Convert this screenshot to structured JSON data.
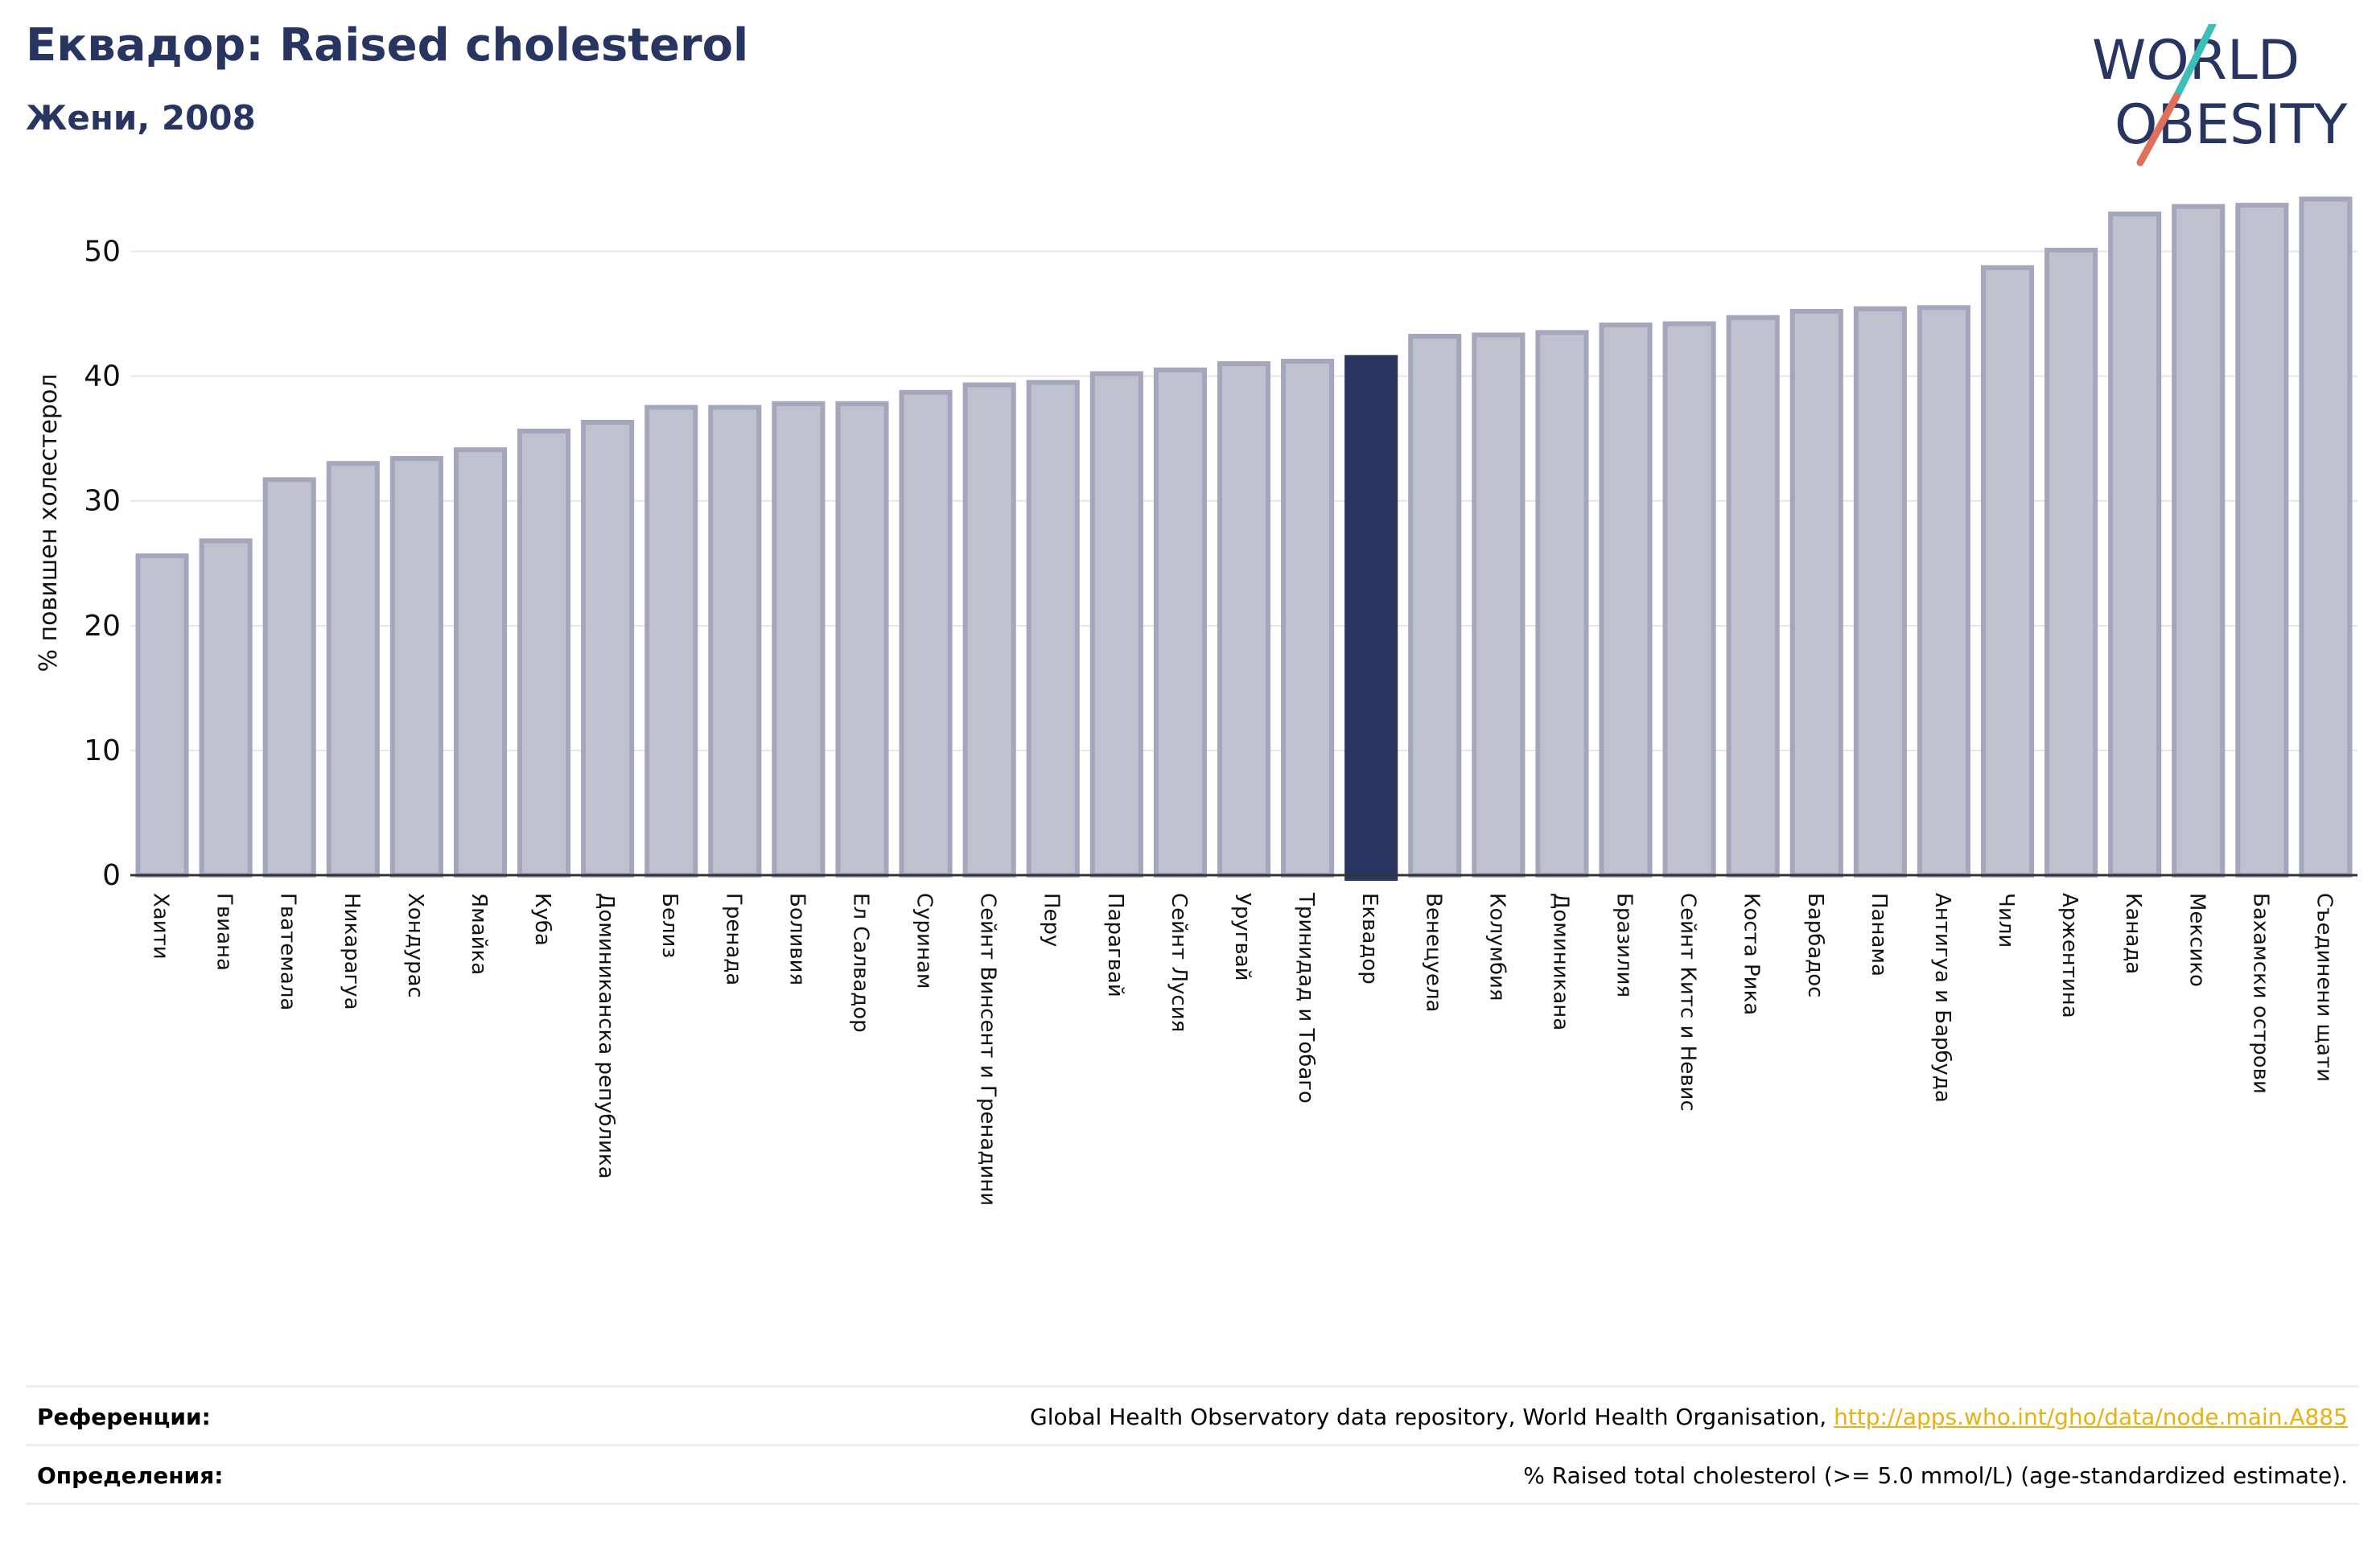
{
  "header": {
    "title": "Еквадор: Raised cholesterol",
    "subtitle": "Жени, 2008"
  },
  "logo": {
    "line1": "WORLD",
    "line2": "OBESITY",
    "colors": {
      "text": "#283560",
      "slash_top": "#3bbfb8",
      "slash_bottom": "#e0705a"
    }
  },
  "colors": {
    "bar_fill": "#bfc1cf",
    "bar_stroke": "#a3a6bc",
    "highlight": "#283560",
    "grid": "#e6e6e6",
    "axis": "#333333"
  },
  "chart_data": {
    "type": "bar",
    "title": "Еквадор: Raised cholesterol",
    "subtitle": "Жени, 2008",
    "ylabel": "% повишен холестерол",
    "xlabel": "",
    "ylim": [
      0,
      55
    ],
    "yticks": [
      0,
      10,
      20,
      30,
      40,
      50
    ],
    "grid": true,
    "highlight": "Еквадор",
    "categories": [
      "Хаити",
      "Гвиана",
      "Гватемала",
      "Никарагуа",
      "Хондурас",
      "Ямайка",
      "Куба",
      "Доминиканска република",
      "Белиз",
      "Гренада",
      "Боливия",
      "Ел Салвадор",
      "Суринам",
      "Сейнт Винсент и Гренадини",
      "Перу",
      "Парагвай",
      "Сейнт Лусия",
      "Уругвай",
      "Тринидад и Тобаго",
      "Еквадор",
      "Венецуела",
      "Колумбия",
      "Доминикана",
      "Бразилия",
      "Сейнт Китс и Невис",
      "Коста Рика",
      "Барбадос",
      "Панама",
      "Антигуа и Барбуда",
      "Чили",
      "Аржентина",
      "Канада",
      "Мексико",
      "Бахамски острови",
      "Съединени щати"
    ],
    "values": [
      25.6,
      26.8,
      31.7,
      33.0,
      33.4,
      34.1,
      35.6,
      36.3,
      37.5,
      37.5,
      37.8,
      37.8,
      38.7,
      39.3,
      39.5,
      40.2,
      40.5,
      41.0,
      41.2,
      41.5,
      43.2,
      43.3,
      43.5,
      44.1,
      44.2,
      44.7,
      45.2,
      45.4,
      45.5,
      48.7,
      50.1,
      53.0,
      53.6,
      53.7,
      54.2
    ]
  },
  "references": {
    "sources_label": "Референции:",
    "sources_text": "Global Health Observatory data repository, World Health Organisation, ",
    "sources_link": "http://apps.who.int/gho/data/node.main.A885",
    "definitions_label": "Определения:",
    "definitions_text": "% Raised total cholesterol (>= 5.0 mmol/L) (age-standardized estimate)."
  }
}
